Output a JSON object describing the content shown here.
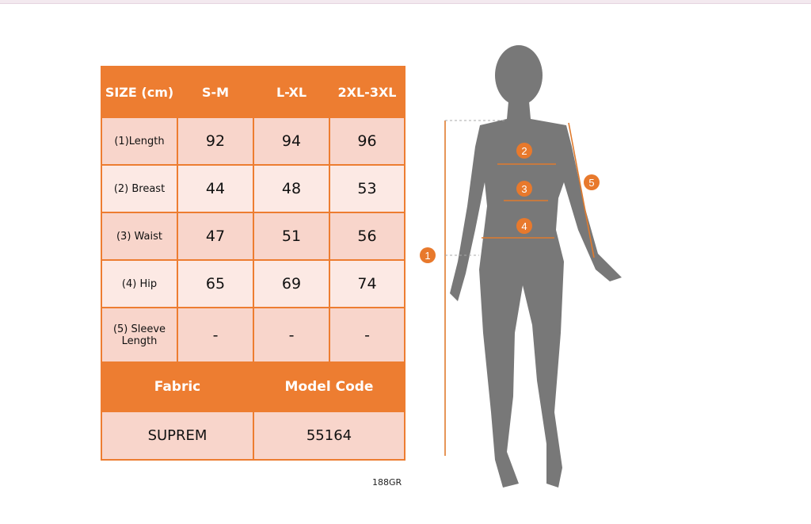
{
  "colors": {
    "accent": "#ed7d31",
    "row_dark": "#f8d5cb",
    "row_light": "#fce9e4",
    "silhouette": "#787878"
  },
  "table": {
    "header": [
      "SIZE (cm)",
      "S-M",
      "L-XL",
      "2XL-3XL"
    ],
    "rows": [
      {
        "label": "(1)Length",
        "values": [
          "92",
          "94",
          "96"
        ]
      },
      {
        "label": "(2) Breast",
        "values": [
          "44",
          "48",
          "53"
        ]
      },
      {
        "label": "(3) Waist",
        "values": [
          "47",
          "51",
          "56"
        ]
      },
      {
        "label": "(4) Hip",
        "values": [
          "65",
          "69",
          "74"
        ]
      },
      {
        "label": "(5) Sleeve Length",
        "values": [
          "-",
          "-",
          "-"
        ]
      }
    ],
    "footer_header": [
      "Fabric",
      "Model Code"
    ],
    "footer_values": [
      "SUPREM",
      "55164"
    ]
  },
  "code": "188GR",
  "markers": [
    "1",
    "2",
    "3",
    "4",
    "5"
  ]
}
